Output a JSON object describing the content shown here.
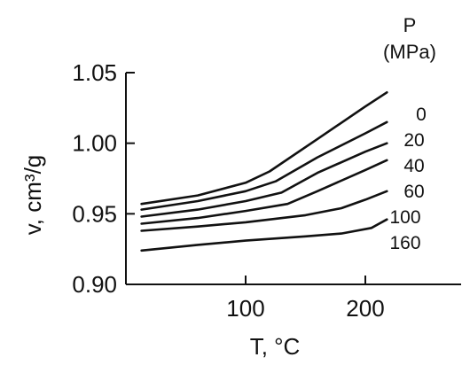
{
  "chart_data": {
    "type": "line",
    "title": "",
    "xlabel": "T, °C",
    "ylabel": "v, cm³/g",
    "xlim": [
      0,
      280
    ],
    "ylim": [
      0.9,
      1.05
    ],
    "x_ticks": [
      100,
      200
    ],
    "x_tick_labels": [
      "100",
      "200"
    ],
    "y_ticks": [
      0.9,
      0.95,
      1.0,
      1.05
    ],
    "y_tick_labels": [
      "0.90",
      "0.95",
      "1.00",
      "1.05"
    ],
    "grid": false,
    "legend": {
      "title": "P",
      "subtitle": "(MPa)",
      "placement": "right of curves, labels at line ends"
    },
    "series": [
      {
        "name": "0",
        "x": [
          13,
          60,
          100,
          120,
          160,
          200,
          218
        ],
        "y": [
          0.957,
          0.963,
          0.972,
          0.98,
          1.003,
          1.026,
          1.036
        ]
      },
      {
        "name": "20",
        "x": [
          13,
          60,
          100,
          125,
          160,
          200,
          218
        ],
        "y": [
          0.953,
          0.959,
          0.966,
          0.973,
          0.99,
          1.007,
          1.015
        ]
      },
      {
        "name": "40",
        "x": [
          13,
          60,
          100,
          130,
          160,
          200,
          218
        ],
        "y": [
          0.948,
          0.953,
          0.959,
          0.965,
          0.979,
          0.994,
          1.0
        ]
      },
      {
        "name": "60",
        "x": [
          13,
          60,
          100,
          135,
          160,
          200,
          218
        ],
        "y": [
          0.943,
          0.947,
          0.952,
          0.957,
          0.966,
          0.981,
          0.988
        ]
      },
      {
        "name": "100",
        "x": [
          13,
          60,
          100,
          150,
          180,
          200,
          218
        ],
        "y": [
          0.938,
          0.941,
          0.944,
          0.949,
          0.954,
          0.96,
          0.966
        ]
      },
      {
        "name": "160",
        "x": [
          13,
          60,
          100,
          150,
          180,
          205,
          218
        ],
        "y": [
          0.924,
          0.928,
          0.931,
          0.934,
          0.936,
          0.94,
          0.946
        ]
      }
    ]
  }
}
